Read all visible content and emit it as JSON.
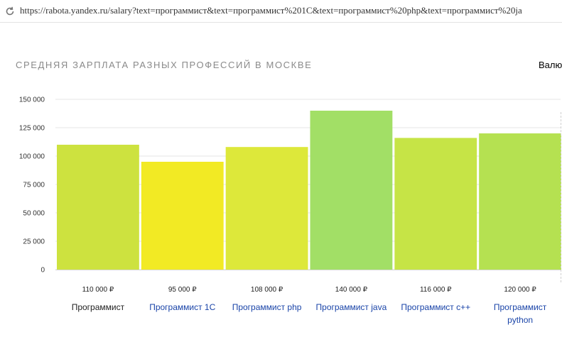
{
  "browser": {
    "url": "https://rabota.yandex.ru/salary?text=программист&text=программист%201C&text=программист%20php&text=программист%20ja"
  },
  "page": {
    "title": "СРЕДНЯЯ ЗАРПЛАТА РАЗНЫХ ПРОФЕССИЙ В МОСКВЕ",
    "currency_label": "Валю"
  },
  "chart_data": {
    "type": "bar",
    "title": "СРЕДНЯЯ ЗАРПЛАТА РАЗНЫХ ПРОФЕССИЙ В МОСКВЕ",
    "categories": [
      "Программист",
      "Программист 1С",
      "Программист php",
      "Программист java",
      "Программист c++",
      "Программист python"
    ],
    "values": [
      110000,
      95000,
      108000,
      140000,
      116000,
      120000
    ],
    "value_labels": [
      "110 000 ₽",
      "95 000 ₽",
      "108 000 ₽",
      "140 000 ₽",
      "116 000 ₽",
      "120 000 ₽"
    ],
    "colors": [
      "#cde23f",
      "#f2ea24",
      "#dde83a",
      "#a2df66",
      "#c6e446",
      "#b5e151"
    ],
    "yticks": [
      0,
      25000,
      50000,
      75000,
      100000,
      125000,
      150000
    ],
    "ytick_labels": [
      "0",
      "25 000",
      "50 000",
      "75 000",
      "100 000",
      "125 000",
      "150 000"
    ],
    "ylim": [
      0,
      150000
    ],
    "grid": true,
    "xlabel": "",
    "ylabel": ""
  }
}
